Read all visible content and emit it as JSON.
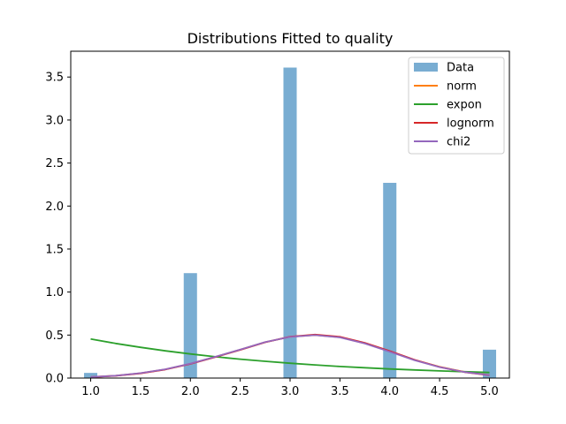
{
  "chart_data": {
    "type": "bar",
    "title": "Distributions Fitted to quality",
    "xlabel": "",
    "ylabel": "",
    "xlim": [
      0.8,
      5.2
    ],
    "ylim": [
      0,
      3.8
    ],
    "xticks": [
      "1.0",
      "1.5",
      "2.0",
      "2.5",
      "3.0",
      "3.5",
      "4.0",
      "4.5",
      "5.0"
    ],
    "yticks": [
      "0.0",
      "0.5",
      "1.0",
      "1.5",
      "2.0",
      "2.5",
      "3.0",
      "3.5"
    ],
    "grid": false,
    "legend_position": "top-right",
    "histogram": {
      "name": "Data",
      "color": "#1f77b4",
      "bin_width": 0.1333,
      "bins": [
        {
          "x": 1.0,
          "value": 0.06
        },
        {
          "x": 2.0,
          "value": 1.22
        },
        {
          "x": 3.0,
          "value": 3.61
        },
        {
          "x": 4.0,
          "value": 2.27
        },
        {
          "x": 5.0,
          "value": 0.33
        }
      ]
    },
    "series": [
      {
        "name": "norm",
        "color": "#ff7f0e",
        "x": [
          1.0,
          1.25,
          1.5,
          1.75,
          2.0,
          2.25,
          2.5,
          2.75,
          3.0,
          3.25,
          3.5,
          3.75,
          4.0,
          4.25,
          4.5,
          4.75,
          5.0
        ],
        "y": [
          0.012,
          0.028,
          0.056,
          0.102,
          0.167,
          0.246,
          0.33,
          0.417,
          0.48,
          0.5,
          0.475,
          0.405,
          0.31,
          0.21,
          0.13,
          0.072,
          0.036
        ]
      },
      {
        "name": "expon",
        "color": "#2ca02c",
        "x": [
          1.0,
          1.25,
          1.5,
          1.75,
          2.0,
          2.25,
          2.5,
          2.75,
          3.0,
          3.25,
          3.5,
          3.75,
          4.0,
          4.25,
          4.5,
          4.75,
          5.0
        ],
        "y": [
          0.455,
          0.403,
          0.357,
          0.316,
          0.28,
          0.248,
          0.22,
          0.195,
          0.173,
          0.153,
          0.135,
          0.12,
          0.106,
          0.094,
          0.083,
          0.074,
          0.065
        ]
      },
      {
        "name": "lognorm",
        "color": "#d62728",
        "x": [
          1.0,
          1.25,
          1.5,
          1.75,
          2.0,
          2.25,
          2.5,
          2.75,
          3.0,
          3.25,
          3.5,
          3.75,
          4.0,
          4.25,
          4.5,
          4.75,
          5.0
        ],
        "y": [
          0.01,
          0.026,
          0.054,
          0.1,
          0.164,
          0.243,
          0.328,
          0.416,
          0.482,
          0.505,
          0.48,
          0.41,
          0.314,
          0.212,
          0.128,
          0.069,
          0.033
        ]
      },
      {
        "name": "chi2",
        "color": "#9467bd",
        "x": [
          1.0,
          1.25,
          1.5,
          1.75,
          2.0,
          2.25,
          2.5,
          2.75,
          3.0,
          3.25,
          3.5,
          3.75,
          4.0,
          4.25,
          4.5,
          4.75,
          5.0
        ],
        "y": [
          0.012,
          0.028,
          0.057,
          0.103,
          0.168,
          0.248,
          0.332,
          0.418,
          0.479,
          0.499,
          0.472,
          0.402,
          0.306,
          0.206,
          0.127,
          0.07,
          0.035
        ]
      }
    ]
  }
}
